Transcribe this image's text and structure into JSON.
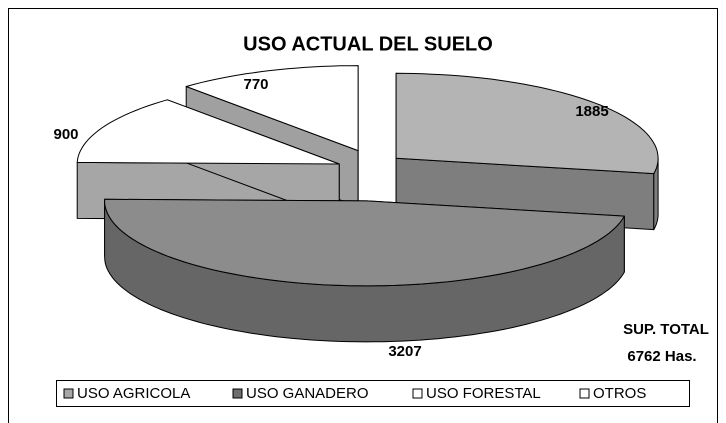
{
  "chart_data": {
    "type": "pie3d",
    "title": "USO ACTUAL DEL SUELO",
    "categories": [
      "USO AGRICOLA",
      "USO GANADERO",
      "USO FORESTAL",
      "OTROS"
    ],
    "values": [
      1885,
      3207,
      900,
      770
    ],
    "colors": [
      "#b4b4b4",
      "#8c8c8c",
      "#ffffff",
      "#ffffff"
    ],
    "side_colors": [
      "#7e7e7e",
      "#666666",
      "#a6a6a6",
      "#a0a0a0"
    ],
    "legend_colors": [
      "#a6a6a6",
      "#6e6e6e",
      "#ffffff",
      "#ffffff"
    ],
    "annotations": [
      "SUP. TOTAL",
      "6762 Has."
    ]
  }
}
